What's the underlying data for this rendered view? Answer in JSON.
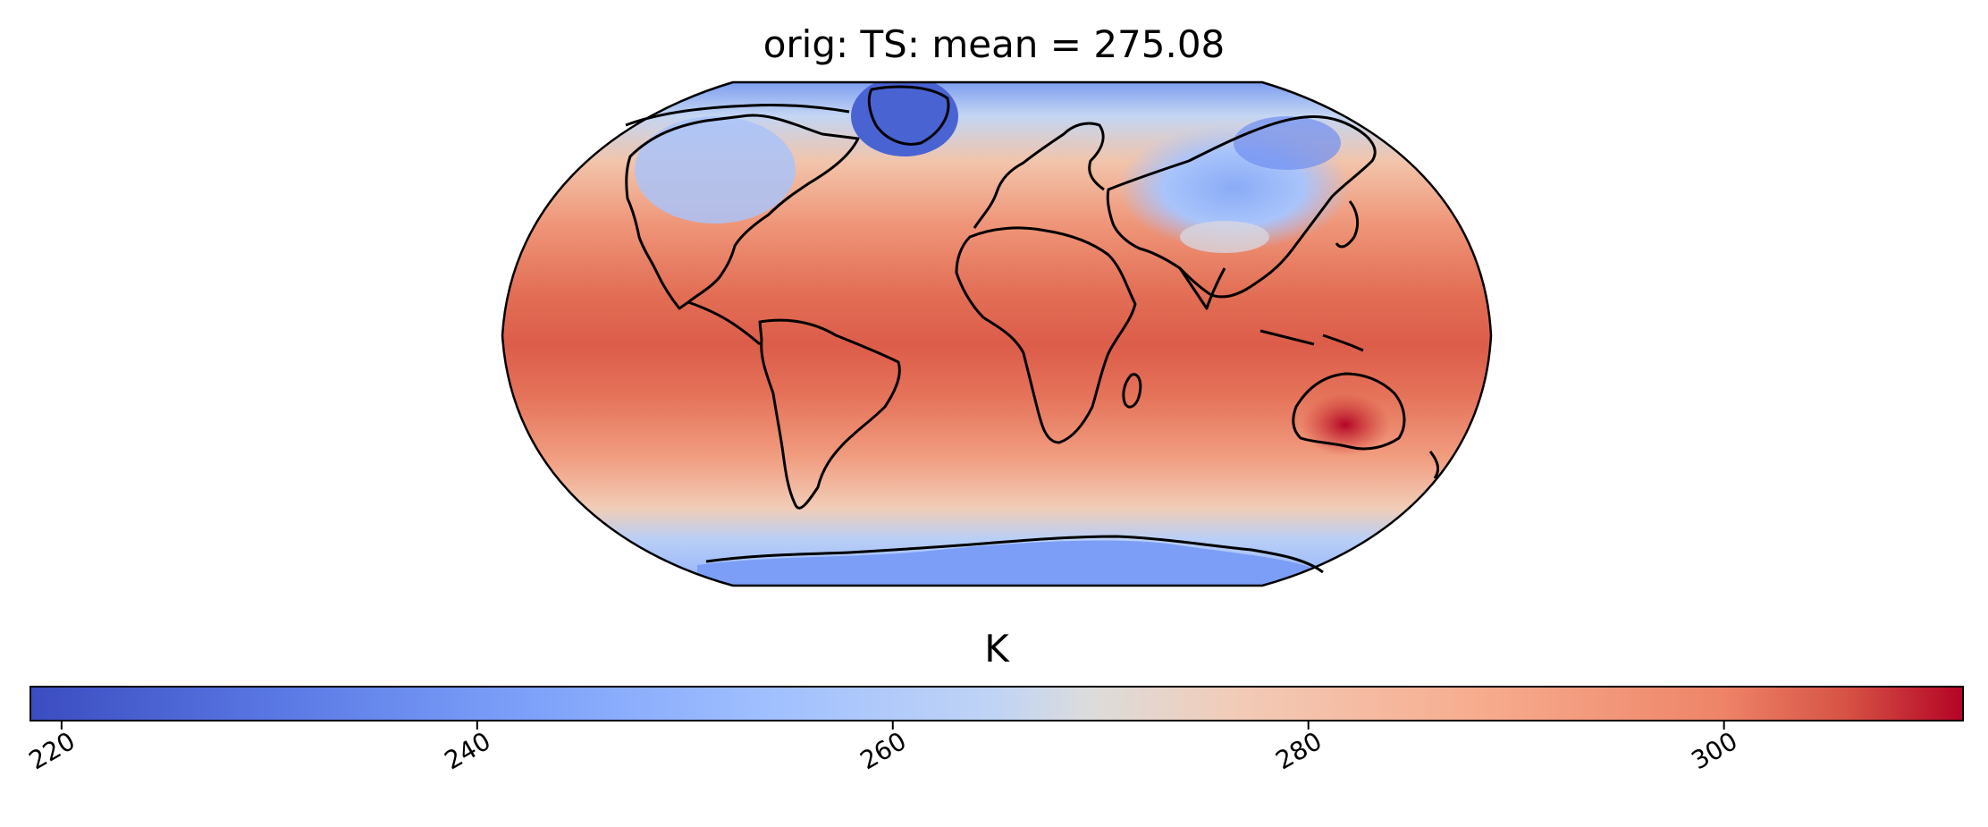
{
  "title": "orig: TS: mean =  275.08",
  "map": {
    "projection": "robinson",
    "variable": "TS",
    "mean": 275.08
  },
  "colorbar": {
    "label": "K",
    "colormap": "coolwarm",
    "vmin": 218.5,
    "vmax": 311.5,
    "ticks": [
      220,
      240,
      260,
      280,
      300
    ],
    "tick_labels": [
      "220",
      "240",
      "260",
      "280",
      "300"
    ],
    "colors": {
      "low": "#3b4cc0",
      "mid": "#dddcdb",
      "high": "#b40426",
      "coastline": "#000000"
    }
  }
}
